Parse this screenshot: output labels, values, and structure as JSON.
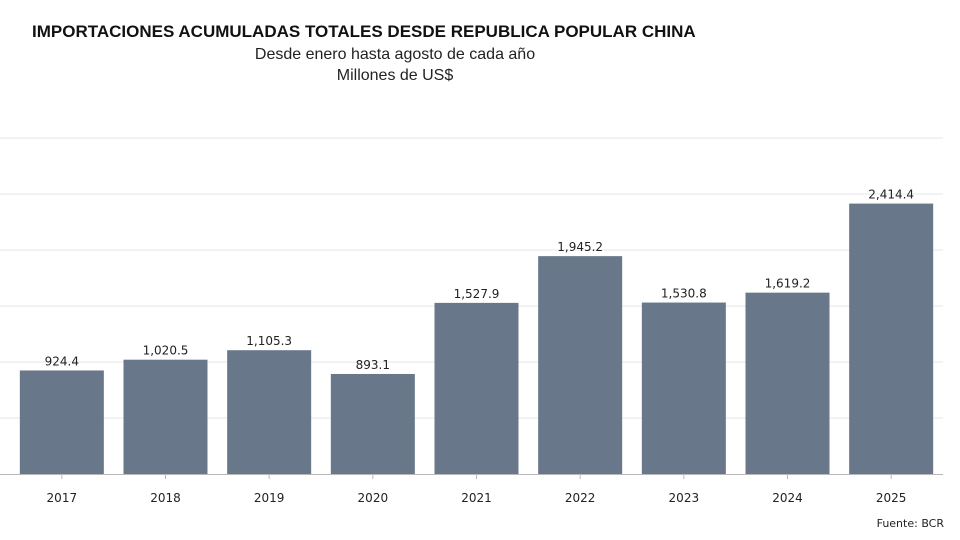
{
  "chart_data": {
    "type": "bar",
    "title": "IMPORTACIONES ACUMULADAS TOTALES DESDE REPUBLICA POPULAR CHINA",
    "subtitle": [
      "Desde enero hasta agosto de cada año",
      "Millones de US$"
    ],
    "categories": [
      "2017",
      "2018",
      "2019",
      "2020",
      "2021",
      "2022",
      "2023",
      "2024",
      "2025"
    ],
    "values": [
      924.4,
      1020.5,
      1105.3,
      893.1,
      1527.9,
      1945.2,
      1530.8,
      1619.2,
      2414.4
    ],
    "labels": [
      "924.4",
      "1,020.5",
      "1,105.3",
      "893.1",
      "1,527.9",
      "1,945.2",
      "1,530.8",
      "1,619.2",
      "2,414.4"
    ],
    "xlabel": "",
    "ylabel": "",
    "ylim": [
      0,
      3000
    ],
    "grid_step": 500,
    "grid": true,
    "bar_color": "#687789",
    "source": "Fuente: BCR"
  }
}
